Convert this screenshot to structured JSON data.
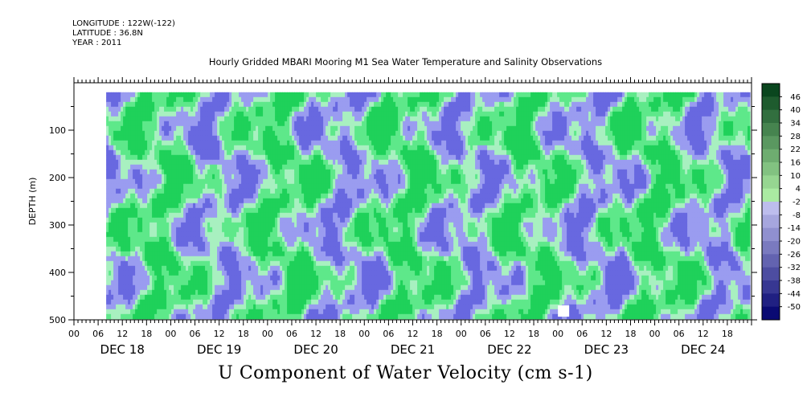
{
  "header": {
    "longitude": "LONGITUDE : 122W(-122)",
    "latitude": "LATITUDE : 36.8N",
    "year": "YEAR : 2011"
  },
  "chart_data": {
    "type": "heatmap",
    "title": "Hourly Gridded MBARI Mooring M1 Sea Water Temperature and Salinity Observations",
    "xlabel": "U Component of Water Velocity (cm s-1)",
    "ylabel": "DEPTH (m)",
    "y_ticks": [
      100,
      200,
      300,
      400,
      500
    ],
    "ylim": [
      500,
      0
    ],
    "x_hour_ticks": [
      "00",
      "06",
      "12",
      "18",
      "00",
      "06",
      "12",
      "18",
      "00",
      "06",
      "12",
      "18",
      "00",
      "06",
      "12",
      "18",
      "00",
      "06",
      "12",
      "18",
      "00",
      "06",
      "12",
      "18",
      "00",
      "06",
      "12",
      "18"
    ],
    "x_day_labels": [
      "DEC 18",
      "DEC 19",
      "DEC 20",
      "DEC 21",
      "DEC 22",
      "DEC 23",
      "DEC 24"
    ],
    "colorbar_levels": [
      "46",
      "40",
      "34",
      "28",
      "22",
      "16",
      "10",
      "4",
      "-2",
      "-8",
      "-14",
      "-20",
      "-26",
      "-32",
      "-38",
      "-44",
      "-50"
    ],
    "colorbar_range": [
      -50,
      52
    ],
    "data_coverage": {
      "depth_range": [
        20,
        490
      ],
      "start_hour_dec18": 8
    },
    "colors": {
      "positive": "#33d966",
      "negative": "#8c8cf2",
      "strong_negative": "#3a3ad6"
    }
  }
}
